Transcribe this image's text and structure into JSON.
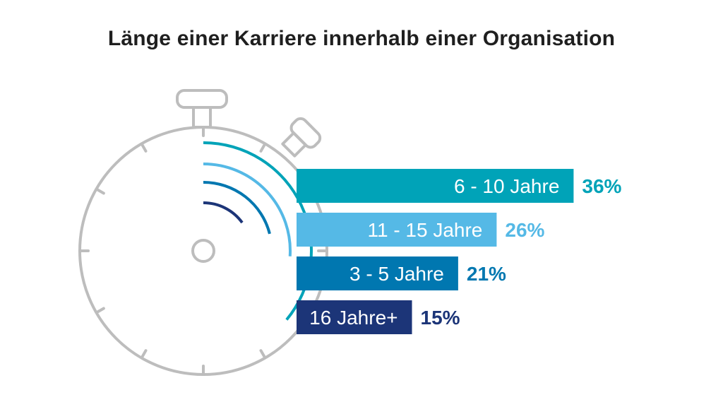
{
  "chart_data": {
    "type": "bar",
    "orientation": "horizontal",
    "title": "Länge einer Karriere innerhalb einer Organisation",
    "categories": [
      "6 - 10 Jahre",
      "11 - 15 Jahre",
      "3 - 5 Jahre",
      "16 Jahre+"
    ],
    "values": [
      36,
      26,
      21,
      15
    ],
    "value_labels": [
      "36%",
      "26%",
      "21%",
      "15%"
    ],
    "colors": [
      "#00a3b8",
      "#55b9e6",
      "#0077b0",
      "#1c3578"
    ],
    "label_color": "#ffffff",
    "grid": false,
    "legend": "none",
    "decoration": "stopwatch"
  },
  "colors": {
    "stopwatch_stroke": "#bdbdbd",
    "title": "#1f1f1f"
  }
}
